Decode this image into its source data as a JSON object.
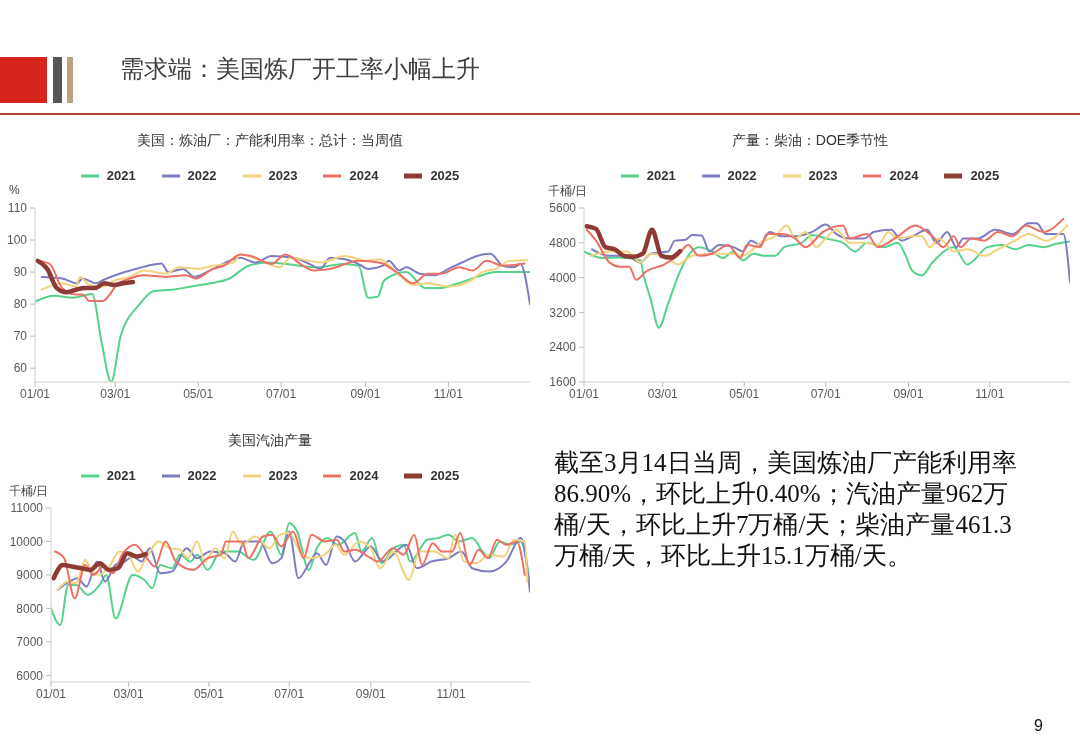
{
  "chart_data": [
    {
      "type": "other",
      "title": "需求端：美国炼厂开工率小幅上升"
    },
    {
      "type": "line",
      "title": "美国：炼油厂：产能利用率：总计：当周值",
      "ylabel": "%",
      "legend": "top",
      "xlim": [
        "--01-01",
        "--12-31"
      ],
      "xticks": [
        {
          "value": "--01-01",
          "label": "01/01"
        },
        {
          "value": "--03-01",
          "label": "03/01"
        },
        {
          "value": "--05-01",
          "label": "05/01"
        },
        {
          "value": "--07-01",
          "label": "07/01"
        },
        {
          "value": "--09-01",
          "label": "09/01"
        },
        {
          "value": "--11-01",
          "label": "11/01"
        }
      ],
      "ylim": [
        55.7,
        110
      ],
      "yticks": [
        60,
        70,
        80,
        90,
        100,
        110
      ],
      "series": [
        {
          "name": "2021",
          "color": "#55d38c",
          "x": [
            "--01-01",
            "--01-15",
            "--01-29",
            "--02-12",
            "--02-19",
            "--02-26",
            "--03-05",
            "--03-19",
            "--03-29",
            "--04-12",
            "--04-26",
            "--05-10",
            "--05-24",
            "--06-07",
            "--06-21",
            "--07-05",
            "--07-26",
            "--08-16",
            "--08-27",
            "--09-03",
            "--09-10",
            "--09-15",
            "--10-01",
            "--10-15",
            "--10-25",
            "--11-08",
            "--11-22",
            "--12-06",
            "--12-31"
          ],
          "values": [
            80.8,
            82.6,
            82,
            83.2,
            68,
            55.7,
            70,
            80,
            84,
            84.5,
            85.5,
            86.5,
            88,
            92,
            93,
            92.5,
            91.5,
            92.5,
            92,
            82,
            82.3,
            87.5,
            90,
            85,
            85,
            86.5,
            88.5,
            90,
            90
          ]
        },
        {
          "name": "2022",
          "color": "#7d7cc2",
          "x": [
            "--01-06",
            "--01-21",
            "--02-01",
            "--02-05",
            "--02-15",
            "--02-20",
            "--03-01",
            "--03-12",
            "--03-25",
            "--04-04",
            "--04-09",
            "--04-20",
            "--04-28",
            "--05-12",
            "--06-01",
            "--06-12",
            "--06-24",
            "--07-10",
            "--07-22",
            "--07-30",
            "--08-06",
            "--08-17",
            "--08-27",
            "--09-03",
            "--09-14",
            "--09-18",
            "--09-26",
            "--10-01",
            "--10-11",
            "--10-22",
            "--11-01",
            "--11-11",
            "--11-26",
            "--12-02",
            "--12-11",
            "--12-19",
            "--12-24",
            "--12-31"
          ],
          "values": [
            88.5,
            88,
            86.5,
            88,
            86.5,
            87.5,
            89,
            90.5,
            92,
            92.7,
            90,
            91,
            88.5,
            91,
            94.5,
            93,
            95,
            94.5,
            92.5,
            91,
            94.5,
            94,
            92.5,
            91,
            92,
            93.5,
            90.5,
            91.5,
            89.5,
            89,
            91,
            93,
            95.5,
            95.7,
            92,
            91.5,
            92.5,
            80
          ]
        },
        {
          "name": "2023",
          "color": "#f1d37e",
          "x": [
            "--01-06",
            "--01-21",
            "--01-31",
            "--02-03",
            "--02-10",
            "--02-20",
            "--03-01",
            "--03-12",
            "--03-22",
            "--04-07",
            "--04-17",
            "--05-01",
            "--05-12",
            "--05-27",
            "--06-01",
            "--06-17",
            "--06-30",
            "--07-08",
            "--07-22",
            "--07-30",
            "--08-17",
            "--08-27",
            "--09-01",
            "--09-11",
            "--09-26",
            "--10-06",
            "--10-17",
            "--11-01",
            "--11-16",
            "--11-26",
            "--12-06",
            "--12-16",
            "--12-29"
          ],
          "values": [
            84.5,
            86.5,
            85.5,
            88.5,
            86,
            85.5,
            87.5,
            88.5,
            90.5,
            89.5,
            91.5,
            91,
            92,
            93,
            95.5,
            93.5,
            91.5,
            94.5,
            93.5,
            93,
            95,
            94,
            93.5,
            94,
            89,
            86,
            86.5,
            85.5,
            87,
            90,
            91,
            93.5,
            93.7
          ]
        },
        {
          "name": "2024",
          "color": "#ee7064",
          "x": [
            "--01-04",
            "--01-12",
            "--01-21",
            "--01-31",
            "--02-05",
            "--02-10",
            "--02-20",
            "--02-25",
            "--03-02",
            "--03-12",
            "--03-22",
            "--04-07",
            "--04-22",
            "--04-29",
            "--05-12",
            "--05-20",
            "--06-01",
            "--06-09",
            "--06-24",
            "--07-04",
            "--07-17",
            "--07-25",
            "--08-06",
            "--08-27",
            "--09-11",
            "--09-24",
            "--10-06",
            "--10-17",
            "--10-27",
            "--11-09",
            "--11-19",
            "--11-29",
            "--12-11",
            "--12-27"
          ],
          "values": [
            93.5,
            92.5,
            85,
            83,
            83,
            81,
            81,
            83,
            86,
            88,
            89,
            88.5,
            89,
            88,
            91,
            92,
            95.5,
            95,
            92.5,
            95.5,
            92,
            90.5,
            91,
            93.5,
            93,
            90,
            86.5,
            89.5,
            89.5,
            91.5,
            90.5,
            93.5,
            92,
            92.7
          ]
        },
        {
          "name": "2025",
          "color": "#8e3a35",
          "x": [
            "--01-03",
            "--01-10",
            "--01-17",
            "--01-24",
            "--01-31",
            "--02-07",
            "--02-14",
            "--02-21",
            "--02-28",
            "--03-07",
            "--03-14"
          ],
          "values": [
            93.5,
            91,
            85,
            83.7,
            84.5,
            85,
            85,
            86.5,
            86,
            86.5,
            86.9
          ]
        }
      ]
    },
    {
      "type": "line",
      "title": "产量：柴油：DOE季节性",
      "ylabel": "千桶/日",
      "legend": "top",
      "xlim": [
        "--01-01",
        "--12-31"
      ],
      "xticks": [
        {
          "value": "--01-01",
          "label": "01/01"
        },
        {
          "value": "--03-01",
          "label": "03/01"
        },
        {
          "value": "--05-01",
          "label": "05/01"
        },
        {
          "value": "--07-01",
          "label": "07/01"
        },
        {
          "value": "--09-01",
          "label": "09/01"
        },
        {
          "value": "--11-01",
          "label": "11/01"
        }
      ],
      "ylim": [
        1600,
        5600
      ],
      "yticks": [
        1600,
        2400,
        3200,
        4000,
        4800,
        5600
      ],
      "series": [
        {
          "name": "2021",
          "color": "#55d38c",
          "x": [
            "--01-01",
            "--01-15",
            "--01-28",
            "--02-12",
            "--02-15",
            "--02-20",
            "--02-26",
            "--03-05",
            "--03-12",
            "--03-20",
            "--03-28",
            "--04-07",
            "--04-15",
            "--04-23",
            "--04-30",
            "--05-08",
            "--05-16",
            "--05-24",
            "--05-31",
            "--06-13",
            "--06-21",
            "--07-01",
            "--07-14",
            "--07-23",
            "--08-01",
            "--08-14",
            "--08-24",
            "--08-30",
            "--09-04",
            "--09-11",
            "--09-19",
            "--10-05",
            "--10-15",
            "--10-20",
            "--10-30",
            "--11-10",
            "--11-20",
            "--11-30",
            "--12-11",
            "--12-21",
            "--12-31"
          ],
          "values": [
            4600,
            4450,
            4460,
            4400,
            4000,
            3500,
            2850,
            3400,
            4000,
            4500,
            4700,
            4600,
            4450,
            4600,
            4400,
            4550,
            4500,
            4500,
            4700,
            4800,
            4980,
            4900,
            4800,
            4600,
            4800,
            4700,
            4800,
            4500,
            4150,
            4050,
            4350,
            4700,
            4300,
            4400,
            4700,
            4750,
            4650,
            4750,
            4700,
            4780,
            4830
          ]
        },
        {
          "name": "2022",
          "color": "#7d7cc2",
          "x": [
            "--01-07",
            "--01-20",
            "--02-02",
            "--02-12",
            "--02-20",
            "--03-05",
            "--03-10",
            "--03-18",
            "--03-23",
            "--03-30",
            "--04-05",
            "--04-12",
            "--04-23",
            "--04-30",
            "--05-06",
            "--05-13",
            "--05-20",
            "--05-29",
            "--06-08",
            "--06-21",
            "--07-01",
            "--07-09",
            "--07-19",
            "--07-30",
            "--08-06",
            "--08-19",
            "--08-27",
            "--09-04",
            "--09-15",
            "--09-22",
            "--09-30",
            "--10-07",
            "--10-12",
            "--10-23",
            "--11-05",
            "--11-18",
            "--11-30",
            "--12-06",
            "--12-13",
            "--12-26",
            "--12-31"
          ],
          "values": [
            4650,
            4500,
            4500,
            4350,
            4550,
            4600,
            4850,
            4870,
            4980,
            4970,
            4600,
            4750,
            4700,
            4600,
            4850,
            4750,
            5050,
            4950,
            4950,
            5050,
            5220,
            5000,
            4900,
            4900,
            5050,
            5100,
            4850,
            4950,
            5100,
            4800,
            5050,
            4700,
            4900,
            4900,
            5100,
            5000,
            5250,
            5250,
            5000,
            5000,
            3900
          ]
        },
        {
          "name": "2023",
          "color": "#f1d37e",
          "x": [
            "--01-06",
            "--01-20",
            "--02-02",
            "--02-12",
            "--02-20",
            "--03-05",
            "--03-12",
            "--03-23",
            "--04-07",
            "--04-23",
            "--04-30",
            "--05-13",
            "--05-24",
            "--06-02",
            "--06-08",
            "--06-16",
            "--06-24",
            "--07-01",
            "--07-09",
            "--07-19",
            "--07-30",
            "--08-09",
            "--08-17",
            "--08-24",
            "--09-04",
            "--09-11",
            "--09-17",
            "--09-24",
            "--10-05",
            "--10-15",
            "--10-28",
            "--11-07",
            "--11-20",
            "--11-30",
            "--12-13",
            "--12-29"
          ],
          "values": [
            4500,
            4600,
            4600,
            4350,
            4550,
            4450,
            4300,
            4500,
            4550,
            4550,
            4500,
            4800,
            4950,
            5200,
            4900,
            5050,
            4700,
            4900,
            5100,
            4800,
            4800,
            4750,
            5050,
            4900,
            4950,
            4950,
            4700,
            4900,
            4600,
            4650,
            4500,
            4650,
            4850,
            5000,
            4850,
            5200
          ]
        },
        {
          "name": "2024",
          "color": "#ee7064",
          "x": [
            "--01-03",
            "--01-10",
            "--01-20",
            "--01-28",
            "--02-04",
            "--02-09",
            "--02-17",
            "--03-02",
            "--03-12",
            "--03-20",
            "--03-28",
            "--04-07",
            "--04-19",
            "--04-28",
            "--05-03",
            "--05-13",
            "--05-18",
            "--05-29",
            "--06-08",
            "--06-16",
            "--06-29",
            "--07-14",
            "--07-19",
            "--08-01",
            "--08-09",
            "--08-24",
            "--09-06",
            "--09-19",
            "--09-27",
            "--10-05",
            "--10-10",
            "--10-18",
            "--10-28",
            "--11-07",
            "--11-18",
            "--11-28",
            "--12-11",
            "--12-26"
          ],
          "values": [
            5100,
            4850,
            4350,
            4250,
            4250,
            3950,
            4150,
            4300,
            4500,
            4750,
            4500,
            4550,
            4750,
            4450,
            4750,
            4700,
            5000,
            5000,
            4900,
            4700,
            5050,
            5200,
            4900,
            5000,
            4700,
            4950,
            5200,
            4950,
            4700,
            4950,
            4700,
            4900,
            4850,
            5050,
            4950,
            5200,
            5050,
            5350
          ]
        },
        {
          "name": "2025",
          "color": "#8e3a35",
          "x": [
            "--01-03",
            "--01-10",
            "--01-17",
            "--01-24",
            "--01-31",
            "--02-07",
            "--02-14",
            "--02-21",
            "--02-28",
            "--03-07",
            "--03-14"
          ],
          "values": [
            5180,
            5120,
            4700,
            4650,
            4500,
            4480,
            4550,
            5100,
            4500,
            4460,
            4610
          ]
        }
      ]
    },
    {
      "type": "line",
      "title": "美国汽油产量",
      "ylabel": "千桶/日",
      "legend": "top",
      "xlim": [
        "--01-01",
        "--12-31"
      ],
      "xticks": [
        {
          "value": "--01-01",
          "label": "01/01"
        },
        {
          "value": "--03-01",
          "label": "03/01"
        },
        {
          "value": "--05-01",
          "label": "05/01"
        },
        {
          "value": "--07-01",
          "label": "07/01"
        },
        {
          "value": "--09-01",
          "label": "09/01"
        },
        {
          "value": "--11-01",
          "label": "11/01"
        }
      ],
      "ylim": [
        5800,
        11000
      ],
      "yticks": [
        6000,
        7000,
        8000,
        9000,
        10000,
        11000
      ],
      "series": [
        {
          "name": "2021",
          "color": "#55d38c",
          "x": [
            "--01-01",
            "--01-08",
            "--01-14",
            "--01-20",
            "--01-29",
            "--02-07",
            "--02-12",
            "--02-19",
            "--03-04",
            "--03-13",
            "--03-19",
            "--03-25",
            "--04-03",
            "--04-09",
            "--04-17",
            "--04-22",
            "--04-30",
            "--05-10",
            "--05-23",
            "--06-04",
            "--06-17",
            "--06-25",
            "--07-01",
            "--07-07",
            "--07-16",
            "--07-22",
            "--07-30",
            "--08-07",
            "--08-20",
            "--08-25",
            "--09-02",
            "--09-09",
            "--09-18",
            "--09-26",
            "--10-01",
            "--10-14",
            "--10-22",
            "--10-30",
            "--11-07",
            "--11-17",
            "--11-25",
            "--11-30",
            "--12-08",
            "--12-16",
            "--12-24",
            "--12-31"
          ],
          "values": [
            8000,
            7500,
            8700,
            8700,
            8400,
            8700,
            9000,
            7700,
            9000,
            8850,
            8600,
            9300,
            9200,
            9600,
            9400,
            9600,
            9150,
            9700,
            9700,
            9450,
            10300,
            9600,
            10550,
            10300,
            9150,
            9800,
            10100,
            9900,
            10250,
            9700,
            10100,
            9350,
            9800,
            9900,
            9400,
            10050,
            10100,
            10200,
            10000,
            10100,
            9700,
            9500,
            10000,
            9900,
            10000,
            8700
          ]
        },
        {
          "name": "2022",
          "color": "#7d7cc2",
          "x": [
            "--01-06",
            "--01-15",
            "--01-21",
            "--01-28",
            "--02-05",
            "--02-11",
            "--02-19",
            "--02-26",
            "--03-04",
            "--03-11",
            "--03-17",
            "--03-25",
            "--04-03",
            "--04-14",
            "--04-22",
            "--05-02",
            "--05-13",
            "--05-21",
            "--05-28",
            "--06-09",
            "--06-18",
            "--06-25",
            "--07-01",
            "--07-08",
            "--07-17",
            "--07-22",
            "--07-29",
            "--08-06",
            "--08-12",
            "--08-20",
            "--09-01",
            "--09-10",
            "--09-28",
            "--10-06",
            "--10-17",
            "--10-30",
            "--11-09",
            "--11-17",
            "--11-30",
            "--12-13",
            "--12-24",
            "--12-31"
          ],
          "values": [
            8550,
            8800,
            8900,
            8650,
            9400,
            8800,
            9300,
            9400,
            9550,
            9400,
            9800,
            9050,
            9100,
            9800,
            9500,
            9700,
            9650,
            9400,
            10000,
            10000,
            9350,
            9500,
            10300,
            8900,
            9400,
            9650,
            9300,
            10150,
            10000,
            9400,
            9850,
            9400,
            9900,
            9200,
            9400,
            9500,
            9700,
            9200,
            9100,
            9400,
            10100,
            8500
          ]
        },
        {
          "name": "2023",
          "color": "#f1d37e",
          "x": [
            "--01-06",
            "--01-14",
            "--01-20",
            "--01-27",
            "--02-01",
            "--02-07",
            "--02-15",
            "--02-22",
            "--02-28",
            "--03-08",
            "--03-13",
            "--03-24",
            "--04-01",
            "--04-09",
            "--04-15",
            "--04-22",
            "--04-28",
            "--05-06",
            "--05-13",
            "--05-19",
            "--05-26",
            "--06-05",
            "--06-16",
            "--06-24",
            "--07-01",
            "--07-09",
            "--07-17",
            "--07-28",
            "--08-05",
            "--08-12",
            "--08-23",
            "--09-01",
            "--09-08",
            "--09-18",
            "--09-30",
            "--10-08",
            "--10-19",
            "--10-30",
            "--11-04",
            "--11-11",
            "--11-20",
            "--11-30",
            "--12-11",
            "--12-19",
            "--12-27",
            "--12-29"
          ],
          "values": [
            8550,
            8800,
            8750,
            9450,
            9100,
            9000,
            9300,
            9700,
            9650,
            9100,
            9400,
            10000,
            9800,
            9750,
            9500,
            10000,
            9400,
            9800,
            9500,
            10300,
            9900,
            10150,
            9800,
            10200,
            10250,
            9700,
            9500,
            9600,
            9900,
            9600,
            10000,
            9800,
            9200,
            9700,
            8850,
            9700,
            9700,
            9500,
            10200,
            9400,
            9350,
            9600,
            9550,
            10050,
            10000,
            8800
          ]
        },
        {
          "name": "2024",
          "color": "#ee7064",
          "x": [
            "--01-04",
            "--01-11",
            "--01-19",
            "--01-27",
            "--02-02",
            "--02-10",
            "--02-17",
            "--02-24",
            "--03-06",
            "--03-13",
            "--03-21",
            "--03-29",
            "--04-06",
            "--04-19",
            "--04-30",
            "--05-10",
            "--05-14",
            "--05-26",
            "--05-31",
            "--06-11",
            "--06-18",
            "--06-25",
            "--07-04",
            "--07-12",
            "--07-18",
            "--07-28",
            "--08-06",
            "--08-12",
            "--08-20",
            "--09-01",
            "--09-06",
            "--09-18",
            "--09-26",
            "--10-04",
            "--10-10",
            "--10-18",
            "--10-25",
            "--11-02",
            "--11-08",
            "--11-15",
            "--11-22",
            "--11-29",
            "--12-06",
            "--12-13",
            "--12-21",
            "--12-27"
          ],
          "values": [
            9700,
            9500,
            8300,
            9300,
            9000,
            9250,
            9050,
            9600,
            9900,
            9600,
            9250,
            10000,
            9400,
            9150,
            9500,
            9600,
            10000,
            10000,
            9500,
            10150,
            10200,
            9850,
            10300,
            9500,
            10200,
            10000,
            10050,
            9700,
            9750,
            9500,
            9400,
            9800,
            9600,
            10200,
            9300,
            9950,
            9700,
            9700,
            10250,
            9300,
            9750,
            9500,
            10050,
            9900,
            10000,
            9000
          ]
        },
        {
          "name": "2025",
          "color": "#8e3a35",
          "x": [
            "--01-03",
            "--01-10",
            "--01-17",
            "--01-24",
            "--01-31",
            "--02-07",
            "--02-14",
            "--02-21",
            "--02-28",
            "--03-07",
            "--03-14"
          ],
          "values": [
            8900,
            9300,
            9250,
            9200,
            9150,
            9350,
            9150,
            9200,
            9650,
            9550,
            9620
          ]
        }
      ]
    },
    {
      "type": "other",
      "annotations": [
        "截至3月14日当周，美国炼油厂产能利用率86.90%，环比上升0.40%；汽油产量962万桶/天，环比上升7万桶/天；柴油产量461.3万桶/天，环比上升15.1万桶/天。",
        "9"
      ]
    }
  ]
}
